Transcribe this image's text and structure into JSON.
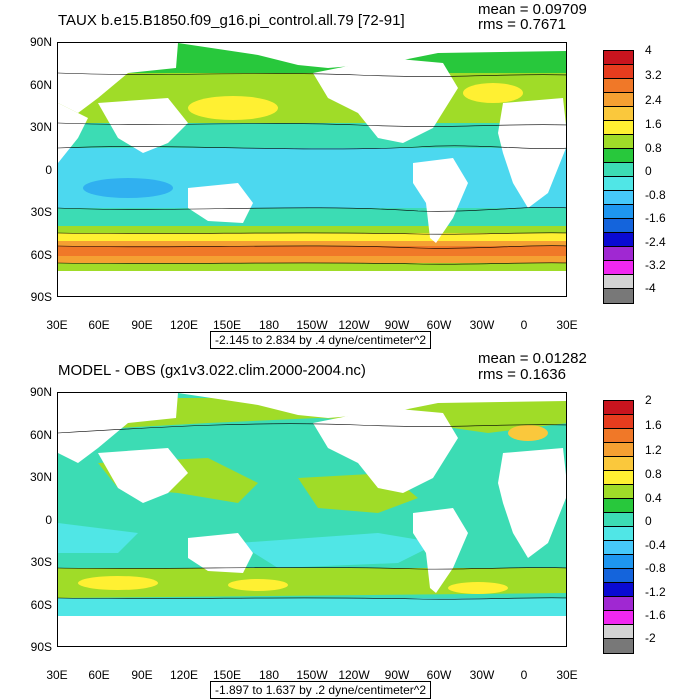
{
  "panels": [
    {
      "title": "TAUX b.e15.B1850.f09_g16.pi_control.all.79 [72-91]",
      "mean_label": "mean = 0.09709",
      "rms_label": "rms = 0.7671",
      "range_label": "-2.145 to 2.834 by .4 dyne/centimeter^2",
      "lat_labels": [
        "90N",
        "60N",
        "30N",
        "0",
        "30S",
        "60S",
        "90S"
      ],
      "lon_labels": [
        "30E",
        "60E",
        "90E",
        "120E",
        "150E",
        "180",
        "150W",
        "120W",
        "90W",
        "60W",
        "30W",
        "0",
        "30E"
      ],
      "colorbar_labels": [
        "4",
        "3.2",
        "2.4",
        "1.6",
        "0.8",
        "0",
        "-0.8",
        "-1.6",
        "-2.4",
        "-3.2",
        "-4"
      ]
    },
    {
      "title": "MODEL - OBS (gx1v3.022.clim.2000-2004.nc)",
      "mean_label": "mean = 0.01282",
      "rms_label": "rms = 0.1636",
      "range_label": "-1.897 to 1.637 by .2 dyne/centimeter^2",
      "lat_labels": [
        "90N",
        "60N",
        "30N",
        "0",
        "30S",
        "60S",
        "90S"
      ],
      "lon_labels": [
        "30E",
        "60E",
        "90E",
        "120E",
        "150E",
        "180",
        "150W",
        "120W",
        "90W",
        "60W",
        "30W",
        "0",
        "30E"
      ],
      "colorbar_labels": [
        "2",
        "1.6",
        "1.2",
        "0.8",
        "0.4",
        "0",
        "-0.4",
        "-0.8",
        "-1.2",
        "-1.6",
        "-2"
      ]
    }
  ],
  "colors": {
    "palette": [
      "#C8141E",
      "#E63C1E",
      "#F07828",
      "#F5A032",
      "#FAC83C",
      "#FFF032",
      "#A0DC28",
      "#28C83C",
      "#3CDCB4",
      "#50E6E6",
      "#46C8FA",
      "#1E96F0",
      "#1464DC",
      "#0A0AD2",
      "#A028D2",
      "#F028F0",
      "#D2D2D2",
      "#787878"
    ],
    "ocean_top": "#50E6E6",
    "ocean_bottom": "#3CDCB4",
    "land": "#FFFFFF"
  }
}
